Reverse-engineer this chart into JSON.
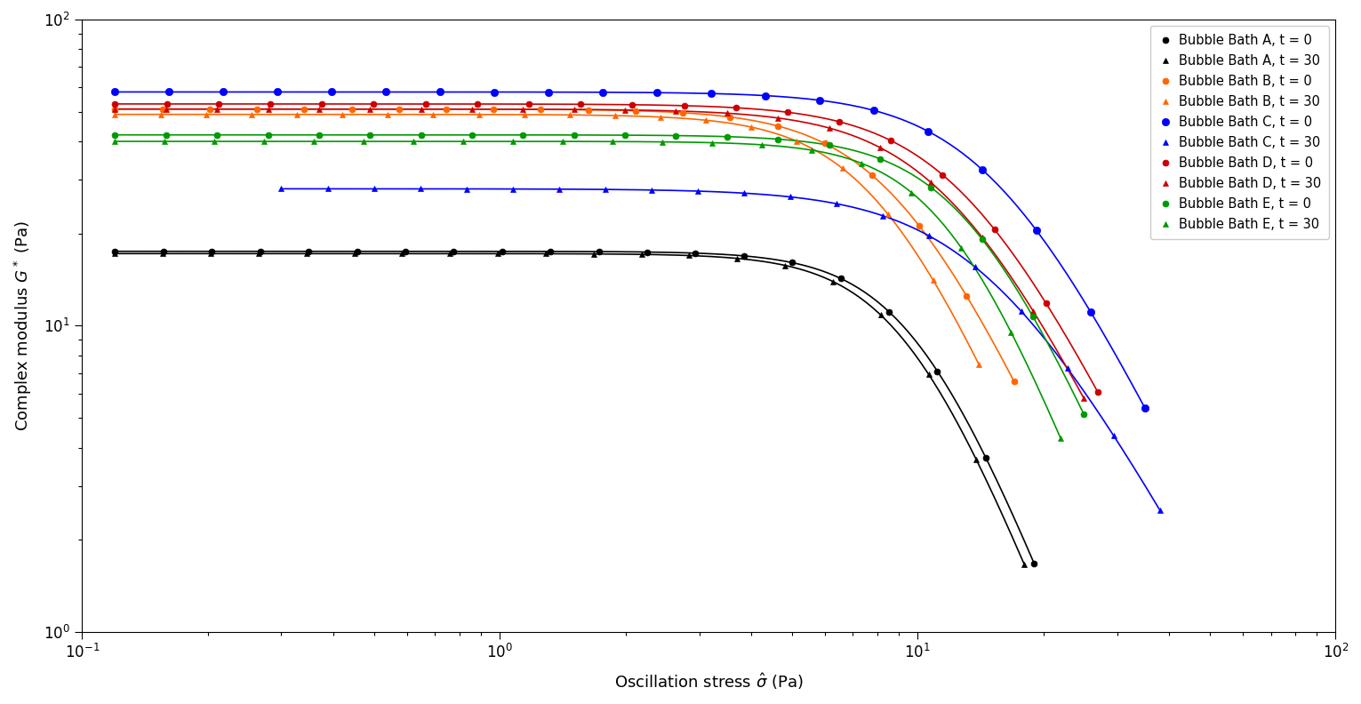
{
  "xlabel": "Oscillation stress $\\hat{\\sigma}$ (Pa)",
  "ylabel": "Complex modulus $G^*$ (Pa)",
  "xlim": [
    0.1,
    100
  ],
  "ylim": [
    1.0,
    100
  ],
  "background_color": "#ffffff",
  "series": [
    {
      "label": "Bubble Bath A, t = 0",
      "color": "#000000",
      "marker": "o",
      "plateau": 17.5,
      "x_break": 10.0,
      "steepness": 3.5,
      "x_start": 0.12,
      "x_end": 19,
      "ms": 5
    },
    {
      "label": "Bubble Bath A, t = 30",
      "color": "#000000",
      "marker": "^",
      "plateau": 17.2,
      "x_break": 9.5,
      "steepness": 3.5,
      "x_start": 0.12,
      "x_end": 18,
      "ms": 5
    },
    {
      "label": "Bubble Bath B, t = 0",
      "color": "#FF6600",
      "marker": "o",
      "plateau": 51,
      "x_break": 9.0,
      "steepness": 3.0,
      "x_start": 0.12,
      "x_end": 17,
      "ms": 5
    },
    {
      "label": "Bubble Bath B, t = 30",
      "color": "#FF6600",
      "marker": "^",
      "plateau": 49,
      "x_break": 8.2,
      "steepness": 3.2,
      "x_start": 0.12,
      "x_end": 14,
      "ms": 5
    },
    {
      "label": "Bubble Bath C, t = 0",
      "color": "#0000FF",
      "marker": "o",
      "plateau": 58,
      "x_break": 15.5,
      "steepness": 2.8,
      "x_start": 0.12,
      "x_end": 35,
      "ms": 6
    },
    {
      "label": "Bubble Bath C, t = 30",
      "color": "#0000FF",
      "marker": "^",
      "plateau": 28,
      "x_break": 15.0,
      "steepness": 2.5,
      "x_start": 0.3,
      "x_end": 38,
      "ms": 5
    },
    {
      "label": "Bubble Bath D, t = 0",
      "color": "#CC0000",
      "marker": "o",
      "plateau": 53,
      "x_break": 13.0,
      "steepness": 2.8,
      "x_start": 0.12,
      "x_end": 27,
      "ms": 5
    },
    {
      "label": "Bubble Bath D, t = 30",
      "color": "#CC0000",
      "marker": "^",
      "plateau": 51,
      "x_break": 12.0,
      "steepness": 2.8,
      "x_start": 0.12,
      "x_end": 25,
      "ms": 5
    },
    {
      "label": "Bubble Bath E, t = 0",
      "color": "#009900",
      "marker": "o",
      "plateau": 42,
      "x_break": 13.5,
      "steepness": 3.2,
      "x_start": 0.12,
      "x_end": 25,
      "ms": 5
    },
    {
      "label": "Bubble Bath E, t = 30",
      "color": "#009900",
      "marker": "^",
      "plateau": 40,
      "x_break": 12.0,
      "steepness": 3.5,
      "x_start": 0.12,
      "x_end": 22,
      "ms": 5
    }
  ]
}
